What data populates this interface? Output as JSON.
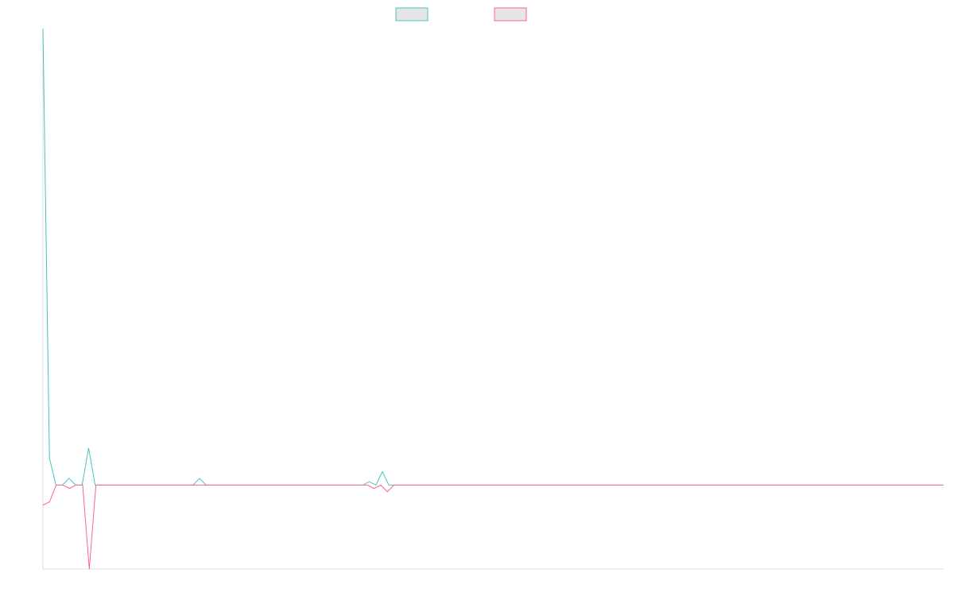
{
  "chart_data": {
    "type": "line",
    "title": "",
    "xlabel": "",
    "ylabel": "",
    "grid": false,
    "legend_position": "top-center",
    "ylim": [
      -1.25,
      6.8
    ],
    "xlim": [
      0,
      136
    ],
    "series": [
      {
        "name": "",
        "color": "#4bc0c0",
        "values": [
          6.8,
          0.4,
          0,
          0,
          0.1,
          0,
          0,
          0.55,
          0,
          0,
          0,
          0,
          0,
          0,
          0,
          0,
          0,
          0,
          0,
          0,
          0,
          0,
          0,
          0,
          0.1,
          0,
          0,
          0,
          0,
          0,
          0,
          0,
          0,
          0,
          0,
          0,
          0,
          0,
          0,
          0,
          0,
          0,
          0,
          0,
          0,
          0,
          0,
          0,
          0,
          0,
          0.05,
          0,
          0.2,
          0,
          0,
          0,
          0,
          0,
          0,
          0,
          0,
          0,
          0,
          0,
          0,
          0,
          0,
          0,
          0,
          0,
          0,
          0,
          0,
          0,
          0,
          0,
          0,
          0,
          0,
          0,
          0,
          0,
          0,
          0,
          0,
          0,
          0,
          0,
          0,
          0,
          0,
          0,
          0,
          0,
          0,
          0,
          0,
          0,
          0,
          0,
          0,
          0,
          0,
          0,
          0,
          0,
          0,
          0,
          0,
          0,
          0,
          0,
          0,
          0,
          0,
          0,
          0,
          0,
          0,
          0,
          0,
          0,
          0,
          0,
          0,
          0,
          0,
          0,
          0,
          0,
          0,
          0,
          0,
          0,
          0,
          0,
          0,
          0,
          0
        ]
      },
      {
        "name": "",
        "color": "#ff6384",
        "values": [
          -0.3,
          -0.25,
          0,
          0,
          -0.05,
          0,
          0,
          -1.25,
          0,
          0,
          0,
          0,
          0,
          0,
          0,
          0,
          0,
          0,
          0,
          0,
          0,
          0,
          0,
          0,
          0,
          0,
          0,
          0,
          0,
          0,
          0,
          0,
          0,
          0,
          0,
          0,
          0,
          0,
          0,
          0,
          0,
          0,
          0,
          0,
          0,
          0,
          0,
          0,
          0,
          0,
          -0.05,
          0,
          -0.1,
          0,
          0,
          0,
          0,
          0,
          0,
          0,
          0,
          0,
          0,
          0,
          0,
          0,
          0,
          0,
          0,
          0,
          0,
          0,
          0,
          0,
          0,
          0,
          0,
          0,
          0,
          0,
          0,
          0,
          0,
          0,
          0,
          0,
          0,
          0,
          0,
          0,
          0,
          0,
          0,
          0,
          0,
          0,
          0,
          0,
          0,
          0,
          0,
          0,
          0,
          0,
          0,
          0,
          0,
          0,
          0,
          0,
          0,
          0,
          0,
          0,
          0,
          0,
          0,
          0,
          0,
          0,
          0,
          0,
          0,
          0,
          0,
          0,
          0,
          0,
          0,
          0,
          0,
          0,
          0,
          0,
          0,
          0,
          0
        ]
      }
    ]
  }
}
